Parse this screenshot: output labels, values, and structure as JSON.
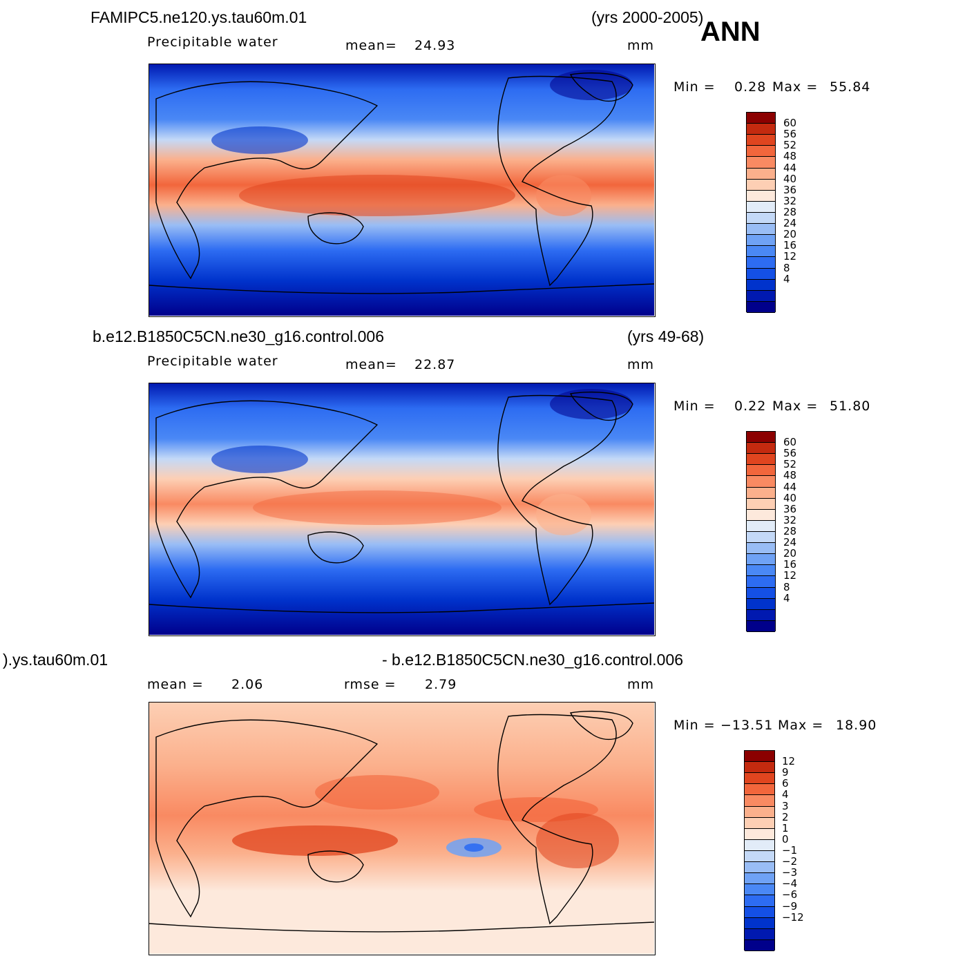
{
  "figure": {
    "season": "ANN"
  },
  "panels": [
    {
      "case": "FAMIPC5.ne120.ys.tau60m.01",
      "years": "(yrs 2000-2005)",
      "variable": "Precipitable water",
      "stat1_label": "mean=",
      "stat1_value": "24.93",
      "stat2_label": "",
      "stat2_value": "",
      "units": "mm",
      "min_label": "Min =",
      "min_value": "0.28",
      "max_label": "Max =",
      "max_value": "55.84"
    },
    {
      "case": "b.e12.B1850C5CN.ne30_g16.control.006",
      "years": "(yrs 49-68)",
      "variable": "Precipitable water",
      "stat1_label": "mean=",
      "stat1_value": "22.87",
      "stat2_label": "",
      "stat2_value": "",
      "units": "mm",
      "min_label": "Min =",
      "min_value": "0.22",
      "max_label": "Max =",
      "max_value": "51.80"
    },
    {
      "case": ").ys.tau60m.01",
      "years": "- b.e12.B1850C5CN.ne30_g16.control.006",
      "variable": "",
      "stat1_label": "mean =",
      "stat1_value": "2.06",
      "stat2_label": "rmse =",
      "stat2_value": "2.79",
      "units": "mm",
      "min_label": "Min =",
      "min_value": "−13.51",
      "max_label": "Max =",
      "max_value": "18.90"
    }
  ],
  "chart_data": [
    {
      "type": "heatmap",
      "title": "FAMIPC5.ne120.ys.tau60m.01",
      "subtitle": "Precipitable water",
      "units": "mm",
      "mean": 24.93,
      "min": 0.28,
      "max": 55.84,
      "colorbar_levels": [
        4,
        8,
        12,
        16,
        20,
        24,
        28,
        32,
        36,
        40,
        44,
        48,
        52,
        56,
        60
      ],
      "colorbar_colors": [
        "#00008b",
        "#0019b0",
        "#0033cc",
        "#1450e6",
        "#2d6cf2",
        "#4a88f5",
        "#6fa2f5",
        "#99bdf5",
        "#c4d9f7",
        "#e2ecf8",
        "#fde9dc",
        "#fdcfb4",
        "#fbb08c",
        "#f98a62",
        "#f2663c",
        "#e0451f",
        "#c42a0f",
        "#8b0000"
      ]
    },
    {
      "type": "heatmap",
      "title": "b.e12.B1850C5CN.ne30_g16.control.006",
      "subtitle": "Precipitable water",
      "units": "mm",
      "mean": 22.87,
      "min": 0.22,
      "max": 51.8,
      "colorbar_levels": [
        4,
        8,
        12,
        16,
        20,
        24,
        28,
        32,
        36,
        40,
        44,
        48,
        52,
        56,
        60
      ],
      "colorbar_colors": [
        "#00008b",
        "#0019b0",
        "#0033cc",
        "#1450e6",
        "#2d6cf2",
        "#4a88f5",
        "#6fa2f5",
        "#99bdf5",
        "#c4d9f7",
        "#e2ecf8",
        "#fde9dc",
        "#fdcfb4",
        "#fbb08c",
        "#f98a62",
        "#f2663c",
        "#e0451f",
        "#c42a0f",
        "#8b0000"
      ]
    },
    {
      "type": "heatmap",
      "units": "mm",
      "mean": 2.06,
      "rmse": 2.79,
      "min": -13.51,
      "max": 18.9,
      "colorbar_levels": [
        "−12",
        "−9",
        "−6",
        "−4",
        "−3",
        "−2",
        "−1",
        "0",
        "1",
        "2",
        "3",
        "4",
        "6",
        "9",
        "12"
      ],
      "colorbar_colors": [
        "#00008b",
        "#0019b0",
        "#0033cc",
        "#1450e6",
        "#2d6cf2",
        "#4a88f5",
        "#6fa2f5",
        "#99bdf5",
        "#c4d9f7",
        "#e2ecf8",
        "#fde9dc",
        "#fdcfb4",
        "#fbb08c",
        "#f98a62",
        "#f2663c",
        "#e0451f",
        "#c42a0f",
        "#8b0000"
      ]
    }
  ]
}
